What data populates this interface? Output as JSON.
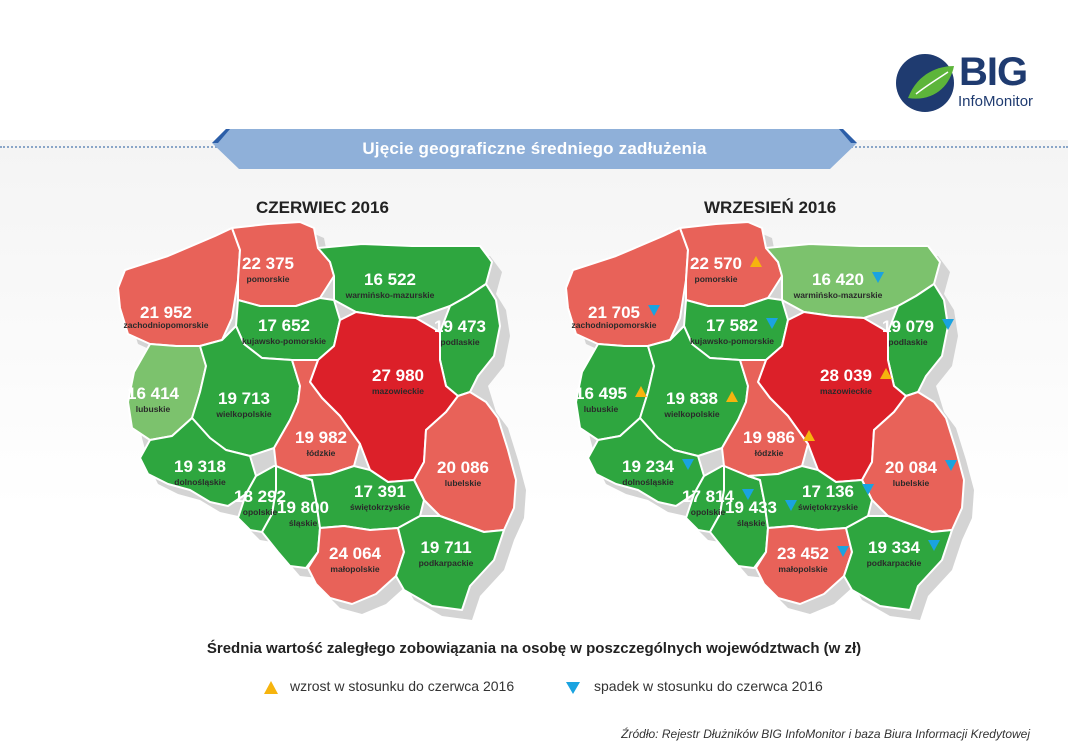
{
  "brand": {
    "name": "BIG",
    "subname": "InfoMonitor"
  },
  "banner_title": "Ujęcie geograficzne średniego zadłużenia",
  "colors": {
    "high": "#e86259",
    "highest": "#dc2029",
    "low": "#2ea63f",
    "lowest": "#7cc26d",
    "up_marker": "#f6b40e",
    "down_marker": "#1aa3e0",
    "banner": "#8fb0d9"
  },
  "maps": [
    {
      "title": "CZERWIEC 2016",
      "regions": [
        {
          "name": "zachodniopomorskie",
          "value": "21 952",
          "category": "high"
        },
        {
          "name": "pomorskie",
          "value": "22 375",
          "category": "high"
        },
        {
          "name": "warmińsko-mazurskie",
          "value": "16 522",
          "category": "low"
        },
        {
          "name": "kujawsko-pomorskie",
          "value": "17 652",
          "category": "low"
        },
        {
          "name": "podlaskie",
          "value": "19 473",
          "category": "low"
        },
        {
          "name": "lubuskie",
          "value": "16 414",
          "category": "lowest"
        },
        {
          "name": "wielkopolskie",
          "value": "19 713",
          "category": "low"
        },
        {
          "name": "mazowieckie",
          "value": "27 980",
          "category": "highest"
        },
        {
          "name": "łódzkie",
          "value": "19 982",
          "category": "high"
        },
        {
          "name": "dolnośląskie",
          "value": "19 318",
          "category": "low"
        },
        {
          "name": "lubelskie",
          "value": "20 086",
          "category": "high"
        },
        {
          "name": "opolskie",
          "value": "18 292",
          "category": "low"
        },
        {
          "name": "śląskie",
          "value": "19 800",
          "category": "low"
        },
        {
          "name": "świętokrzyskie",
          "value": "17 391",
          "category": "low"
        },
        {
          "name": "małopolskie",
          "value": "24 064",
          "category": "high"
        },
        {
          "name": "podkarpackie",
          "value": "19 711",
          "category": "low"
        }
      ]
    },
    {
      "title": "WRZESIEŃ 2016",
      "regions": [
        {
          "name": "zachodniopomorskie",
          "value": "21 705",
          "category": "high",
          "trend": "down"
        },
        {
          "name": "pomorskie",
          "value": "22 570",
          "category": "high",
          "trend": "up"
        },
        {
          "name": "warmińsko-mazurskie",
          "value": "16 420",
          "category": "lowest",
          "trend": "down"
        },
        {
          "name": "kujawsko-pomorskie",
          "value": "17 582",
          "category": "low",
          "trend": "down"
        },
        {
          "name": "podlaskie",
          "value": "19 079",
          "category": "low",
          "trend": "down"
        },
        {
          "name": "lubuskie",
          "value": "16 495",
          "category": "low",
          "trend": "up"
        },
        {
          "name": "wielkopolskie",
          "value": "19 838",
          "category": "low",
          "trend": "up"
        },
        {
          "name": "mazowieckie",
          "value": "28 039",
          "category": "highest",
          "trend": "up"
        },
        {
          "name": "łódzkie",
          "value": "19 986",
          "category": "high",
          "trend": "up"
        },
        {
          "name": "dolnośląskie",
          "value": "19 234",
          "category": "low",
          "trend": "down"
        },
        {
          "name": "lubelskie",
          "value": "20 084",
          "category": "high",
          "trend": "down"
        },
        {
          "name": "opolskie",
          "value": "17 814",
          "category": "low",
          "trend": "down"
        },
        {
          "name": "śląskie",
          "value": "19 433",
          "category": "low",
          "trend": "down"
        },
        {
          "name": "świętokrzyskie",
          "value": "17 136",
          "category": "low",
          "trend": "down"
        },
        {
          "name": "małopolskie",
          "value": "23 452",
          "category": "high",
          "trend": "down"
        },
        {
          "name": "podkarpackie",
          "value": "19 334",
          "category": "low",
          "trend": "down"
        }
      ]
    }
  ],
  "subtitle": "Średnia wartość zaległego zobowiązania na osobę w poszczególnych województwach (w zł)",
  "legend": {
    "up": "wzrost w stosunku do czerwca 2016",
    "down": "spadek w stosunku do czerwca 2016"
  },
  "source": "Źródło: Rejestr Dłużników BIG InfoMonitor i baza Biura Informacji Kredytowej"
}
